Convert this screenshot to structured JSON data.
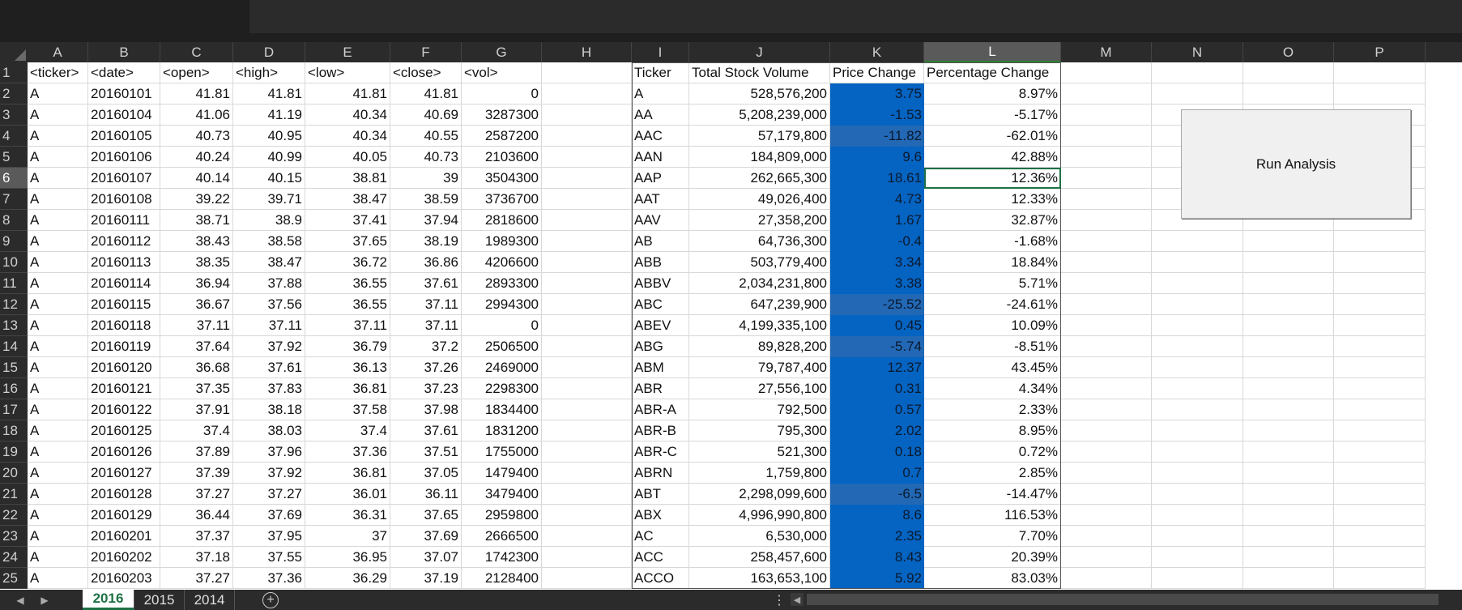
{
  "columns": [
    "A",
    "B",
    "C",
    "D",
    "E",
    "F",
    "G",
    "H",
    "I",
    "J",
    "K",
    "L",
    "M",
    "N",
    "O",
    "P"
  ],
  "selected_column": "L",
  "selected_row": 6,
  "rows": [
    1,
    2,
    3,
    4,
    5,
    6,
    7,
    8,
    9,
    10,
    11,
    12,
    13,
    14,
    15,
    16,
    17,
    18,
    19,
    20,
    21,
    22,
    23,
    24,
    25
  ],
  "raw_headers": [
    "<ticker>",
    "<date>",
    "<open>",
    "<high>",
    "<low>",
    "<close>",
    "<vol>"
  ],
  "raw_data": [
    [
      "A",
      "20160101",
      "41.81",
      "41.81",
      "41.81",
      "41.81",
      "0"
    ],
    [
      "A",
      "20160104",
      "41.06",
      "41.19",
      "40.34",
      "40.69",
      "3287300"
    ],
    [
      "A",
      "20160105",
      "40.73",
      "40.95",
      "40.34",
      "40.55",
      "2587200"
    ],
    [
      "A",
      "20160106",
      "40.24",
      "40.99",
      "40.05",
      "40.73",
      "2103600"
    ],
    [
      "A",
      "20160107",
      "40.14",
      "40.15",
      "38.81",
      "39",
      "3504300"
    ],
    [
      "A",
      "20160108",
      "39.22",
      "39.71",
      "38.47",
      "38.59",
      "3736700"
    ],
    [
      "A",
      "20160111",
      "38.71",
      "38.9",
      "37.41",
      "37.94",
      "2818600"
    ],
    [
      "A",
      "20160112",
      "38.43",
      "38.58",
      "37.65",
      "38.19",
      "1989300"
    ],
    [
      "A",
      "20160113",
      "38.35",
      "38.47",
      "36.72",
      "36.86",
      "4206600"
    ],
    [
      "A",
      "20160114",
      "36.94",
      "37.88",
      "36.55",
      "37.61",
      "2893300"
    ],
    [
      "A",
      "20160115",
      "36.67",
      "37.56",
      "36.55",
      "37.11",
      "2994300"
    ],
    [
      "A",
      "20160118",
      "37.11",
      "37.11",
      "37.11",
      "37.11",
      "0"
    ],
    [
      "A",
      "20160119",
      "37.64",
      "37.92",
      "36.79",
      "37.2",
      "2506500"
    ],
    [
      "A",
      "20160120",
      "36.68",
      "37.61",
      "36.13",
      "37.26",
      "2469000"
    ],
    [
      "A",
      "20160121",
      "37.35",
      "37.83",
      "36.81",
      "37.23",
      "2298300"
    ],
    [
      "A",
      "20160122",
      "37.91",
      "38.18",
      "37.58",
      "37.98",
      "1834400"
    ],
    [
      "A",
      "20160125",
      "37.4",
      "38.03",
      "37.4",
      "37.61",
      "1831200"
    ],
    [
      "A",
      "20160126",
      "37.89",
      "37.96",
      "37.36",
      "37.51",
      "1755000"
    ],
    [
      "A",
      "20160127",
      "37.39",
      "37.92",
      "36.81",
      "37.05",
      "1479400"
    ],
    [
      "A",
      "20160128",
      "37.27",
      "37.27",
      "36.01",
      "36.11",
      "3479400"
    ],
    [
      "A",
      "20160129",
      "36.44",
      "37.69",
      "36.31",
      "37.65",
      "2959800"
    ],
    [
      "A",
      "20160201",
      "37.37",
      "37.95",
      "37",
      "37.69",
      "2666500"
    ],
    [
      "A",
      "20160202",
      "37.18",
      "37.55",
      "36.95",
      "37.07",
      "1742300"
    ],
    [
      "A",
      "20160203",
      "37.27",
      "37.36",
      "36.29",
      "37.19",
      "2128400"
    ]
  ],
  "summary_headers": [
    "Ticker",
    "Total Stock Volume",
    "Price Change",
    "Percentage Change"
  ],
  "summary_data": [
    [
      "A",
      "528,576,200",
      "3.75",
      "8.97%"
    ],
    [
      "AA",
      "5,208,239,000",
      "-1.53",
      "-5.17%"
    ],
    [
      "AAC",
      "57,179,800",
      "-11.82",
      "-62.01%"
    ],
    [
      "AAN",
      "184,809,000",
      "9.6",
      "42.88%"
    ],
    [
      "AAP",
      "262,665,300",
      "18.61",
      "12.36%"
    ],
    [
      "AAT",
      "49,026,400",
      "4.73",
      "12.33%"
    ],
    [
      "AAV",
      "27,358,200",
      "1.67",
      "32.87%"
    ],
    [
      "AB",
      "64,736,300",
      "-0.4",
      "-1.68%"
    ],
    [
      "ABB",
      "503,779,400",
      "3.34",
      "18.84%"
    ],
    [
      "ABBV",
      "2,034,231,800",
      "3.38",
      "5.71%"
    ],
    [
      "ABC",
      "647,239,900",
      "-25.52",
      "-24.61%"
    ],
    [
      "ABEV",
      "4,199,335,100",
      "0.45",
      "10.09%"
    ],
    [
      "ABG",
      "89,828,200",
      "-5.74",
      "-8.51%"
    ],
    [
      "ABM",
      "79,787,400",
      "12.37",
      "43.45%"
    ],
    [
      "ABR",
      "27,556,100",
      "0.31",
      "4.34%"
    ],
    [
      "ABR-A",
      "792,500",
      "0.57",
      "2.33%"
    ],
    [
      "ABR-B",
      "795,300",
      "2.02",
      "8.95%"
    ],
    [
      "ABR-C",
      "521,300",
      "0.18",
      "0.72%"
    ],
    [
      "ABRN",
      "1,759,800",
      "0.7",
      "2.85%"
    ],
    [
      "ABT",
      "2,298,099,600",
      "-6.5",
      "-14.47%"
    ],
    [
      "ABX",
      "4,996,990,800",
      "8.6",
      "116.53%"
    ],
    [
      "AC",
      "6,530,000",
      "2.35",
      "7.70%"
    ],
    [
      "ACC",
      "258,457,600",
      "8.43",
      "20.39%"
    ],
    [
      "ACCO",
      "163,653,100",
      "5.92",
      "83.03%"
    ]
  ],
  "button": {
    "label": "Run Analysis"
  },
  "sheet_tabs": [
    "2016",
    "2015",
    "2014"
  ],
  "active_sheet": "2016",
  "colors": {
    "price_fill": "#0563c1",
    "active_border": "#1e7145"
  }
}
